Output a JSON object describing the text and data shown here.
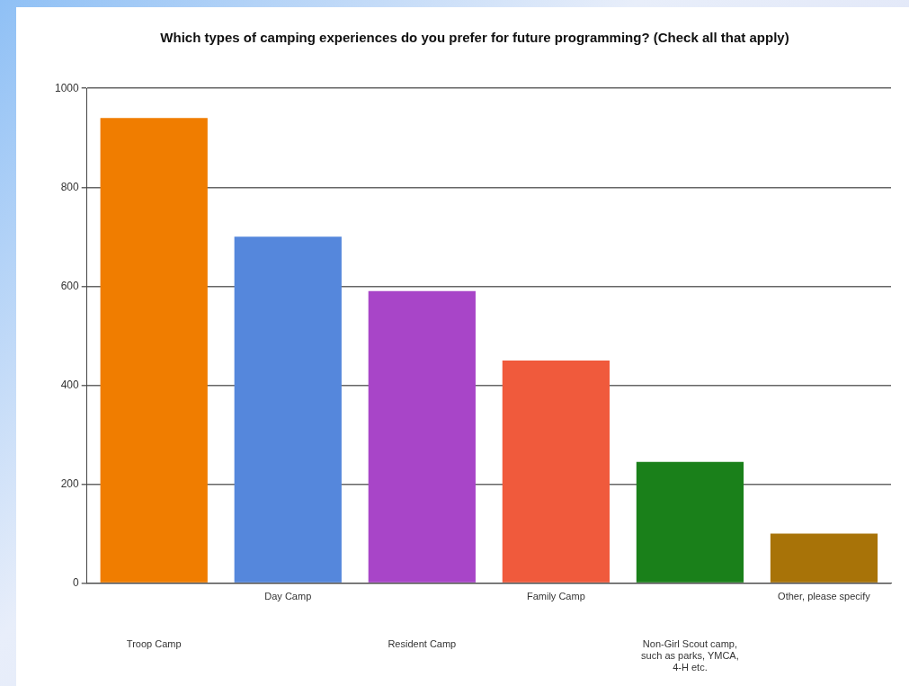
{
  "chart_data": {
    "type": "bar",
    "title": "Which types of camping experiences do you prefer for future programming? (Check all that apply)",
    "categories": [
      "Troop Camp",
      "Day Camp",
      "Resident Camp",
      "Family Camp",
      "Non-Girl Scout camp, such as parks, YMCA, 4-H etc.",
      "Other, please specify"
    ],
    "values": [
      940,
      700,
      590,
      450,
      245,
      100
    ],
    "colors": [
      "#f07d00",
      "#5587dc",
      "#a845c8",
      "#f05a3c",
      "#1a801a",
      "#a87308"
    ],
    "ylim": [
      0,
      1000
    ],
    "yticks": [
      0,
      200,
      400,
      600,
      800,
      1000
    ],
    "grid": "y",
    "legend": false
  }
}
